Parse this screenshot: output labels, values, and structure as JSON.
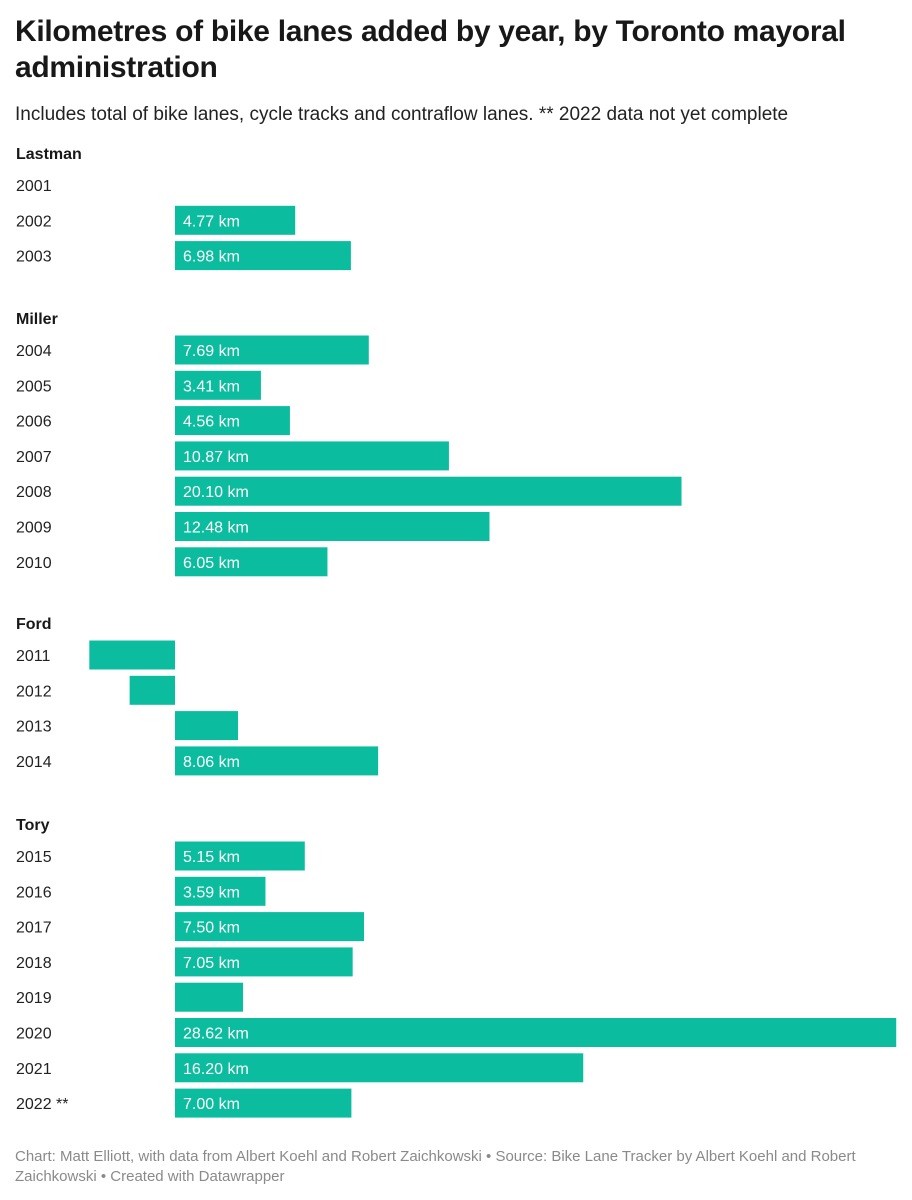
{
  "header": {
    "title": "Kilometres of bike lanes added by year, by Toronto mayoral administration",
    "subtitle": "Includes total of bike lanes, cycle tracks and contraflow lanes. ** 2022 data not yet complete"
  },
  "footer": {
    "credit": "Chart: Matt Elliott, with data from Albert Koehl and Robert Zaichkowski • Source: Bike Lane Tracker by Albert Koehl and Robert Zaichkowski • Created with Datawrapper"
  },
  "colors": {
    "bar": "#0bbd9e",
    "text": "#181818",
    "footer": "#8a8a8a"
  },
  "chart_data": {
    "type": "bar",
    "orientation": "horizontal",
    "unit": "km",
    "groups": [
      {
        "name": "Lastman",
        "rows": [
          {
            "year": "2001",
            "value": 0,
            "label": ""
          },
          {
            "year": "2002",
            "value": 4.77,
            "label": "4.77 km"
          },
          {
            "year": "2003",
            "value": 6.98,
            "label": "6.98 km"
          }
        ]
      },
      {
        "name": "Miller",
        "rows": [
          {
            "year": "2004",
            "value": 7.69,
            "label": "7.69 km"
          },
          {
            "year": "2005",
            "value": 3.41,
            "label": "3.41 km"
          },
          {
            "year": "2006",
            "value": 4.56,
            "label": "4.56 km"
          },
          {
            "year": "2007",
            "value": 10.87,
            "label": "10.87 km"
          },
          {
            "year": "2008",
            "value": 20.1,
            "label": "20.10 km"
          },
          {
            "year": "2009",
            "value": 12.48,
            "label": "12.48 km"
          },
          {
            "year": "2010",
            "value": 6.05,
            "label": "6.05 km"
          }
        ]
      },
      {
        "name": "Ford",
        "rows": [
          {
            "year": "2011",
            "value": -3.4,
            "label": ""
          },
          {
            "year": "2012",
            "value": -1.8,
            "label": ""
          },
          {
            "year": "2013",
            "value": 2.5,
            "label": ""
          },
          {
            "year": "2014",
            "value": 8.06,
            "label": "8.06 km"
          }
        ]
      },
      {
        "name": "Tory",
        "rows": [
          {
            "year": "2015",
            "value": 5.15,
            "label": "5.15 km"
          },
          {
            "year": "2016",
            "value": 3.59,
            "label": "3.59 km"
          },
          {
            "year": "2017",
            "value": 7.5,
            "label": "7.50 km"
          },
          {
            "year": "2018",
            "value": 7.05,
            "label": "7.05 km"
          },
          {
            "year": "2019",
            "value": 2.7,
            "label": ""
          },
          {
            "year": "2020",
            "value": 28.62,
            "label": "28.62 km"
          },
          {
            "year": "2021",
            "value": 16.2,
            "label": "16.20 km"
          },
          {
            "year": "2022 **",
            "value": 7.0,
            "label": "7.00 km"
          }
        ]
      }
    ]
  }
}
